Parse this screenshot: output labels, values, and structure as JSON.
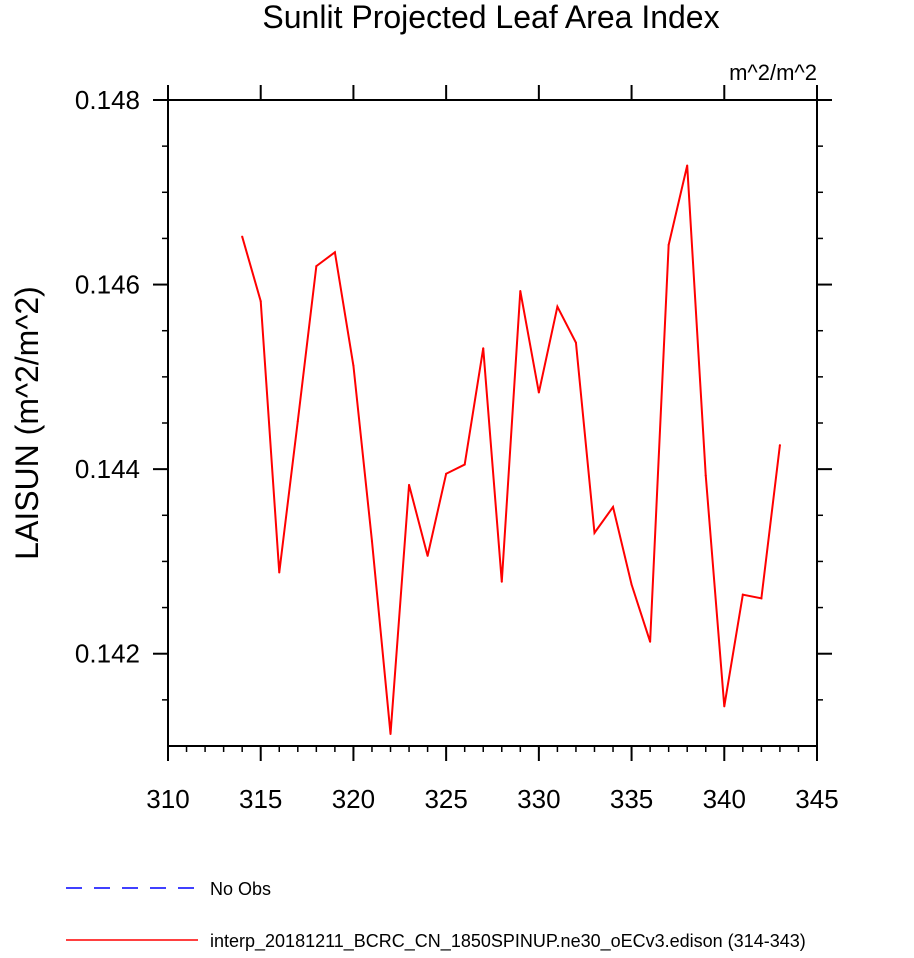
{
  "chart_data": {
    "type": "line",
    "title": "Sunlit Projected Leaf Area Index",
    "units_label": "m^2/m^2",
    "xlabel": "",
    "ylabel": "LAISUN  (m^2/m^2)",
    "xlim": [
      310,
      345
    ],
    "ylim": [
      0.141,
      0.148
    ],
    "x_ticks": [
      310,
      315,
      320,
      325,
      330,
      335,
      340,
      345
    ],
    "x_minor_ticks": [
      310,
      311,
      312,
      313,
      314,
      315,
      316,
      317,
      318,
      319,
      320,
      321,
      322,
      323,
      324,
      325,
      326,
      327,
      328,
      329,
      330,
      331,
      332,
      333,
      334,
      335,
      336,
      337,
      338,
      339,
      340,
      341,
      342,
      343,
      344,
      345
    ],
    "y_ticks": [
      0.142,
      0.144,
      0.146,
      0.148
    ],
    "y_tick_labels": [
      "0.142",
      "0.144",
      "0.146",
      "0.148"
    ],
    "y_minor_ticks": [
      0.1415,
      0.1425,
      0.143,
      0.1435,
      0.1445,
      0.145,
      0.1455,
      0.1465,
      0.147,
      0.1475
    ],
    "series": [
      {
        "name": "interp_20181211_BCRC_CN_1850SPINUP.ne30_oECv3.edison (314-343)",
        "color": "#ff0000",
        "dash": "solid",
        "x": [
          314,
          315,
          316,
          317,
          318,
          319,
          320,
          321,
          322,
          323,
          324,
          325,
          326,
          327,
          328,
          329,
          330,
          331,
          332,
          333,
          334,
          335,
          336,
          337,
          338,
          339,
          340,
          341,
          342,
          343
        ],
        "values": [
          0.14652,
          0.14582,
          0.14288,
          0.14452,
          0.1462,
          0.14635,
          0.14512,
          0.14322,
          0.14113,
          0.14383,
          0.14306,
          0.14395,
          0.14405,
          0.14531,
          0.14278,
          0.14593,
          0.14483,
          0.14576,
          0.14537,
          0.14331,
          0.14359,
          0.14275,
          0.14213,
          0.14643,
          0.14729,
          0.14393,
          0.14143,
          0.14264,
          0.1426,
          0.14426
        ]
      }
    ],
    "legend": [
      {
        "label": "No Obs",
        "color": "#0000ff",
        "dash": "dashed"
      },
      {
        "label": "interp_20181211_BCRC_CN_1850SPINUP.ne30_oECv3.edison (314-343)",
        "color": "#ff0000",
        "dash": "solid"
      }
    ],
    "legend_position": "bottom-left",
    "grid": false
  }
}
